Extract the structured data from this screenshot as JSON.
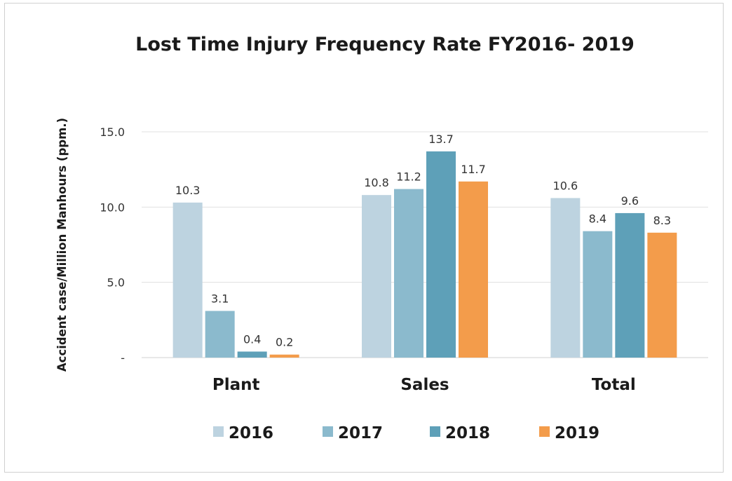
{
  "chart_data": {
    "type": "bar",
    "title": "Lost Time Injury Frequency Rate FY2016- 2019",
    "ylabel": "Accident  case/Million Manhours (ppm.)",
    "xlabel": "",
    "categories": [
      "Plant",
      "Sales",
      "Total"
    ],
    "series": [
      {
        "name": "2016",
        "values": [
          10.3,
          10.8,
          10.6
        ],
        "labels": [
          "10.3",
          "10.8",
          "10.6"
        ],
        "color": "#bdd3e0"
      },
      {
        "name": "2017",
        "values": [
          3.1,
          11.2,
          8.4
        ],
        "labels": [
          "3.1",
          "11.2",
          "8.4"
        ],
        "color": "#8bbacd"
      },
      {
        "name": "2018",
        "values": [
          0.4,
          13.7,
          9.6
        ],
        "labels": [
          "0.4",
          "13.7",
          "9.6"
        ],
        "color": "#5ea0b8"
      },
      {
        "name": "2019",
        "values": [
          0.2,
          11.7,
          8.3
        ],
        "labels": [
          "0.2",
          "11.7",
          "8.3"
        ],
        "color": "#f39c4b"
      }
    ],
    "ylim": [
      0,
      15
    ],
    "yticks": [
      0,
      5,
      10,
      15
    ],
    "ytick_labels": [
      "-",
      "5.0",
      "10.0",
      "15.0"
    ],
    "grid": true,
    "legend_position": "bottom"
  }
}
